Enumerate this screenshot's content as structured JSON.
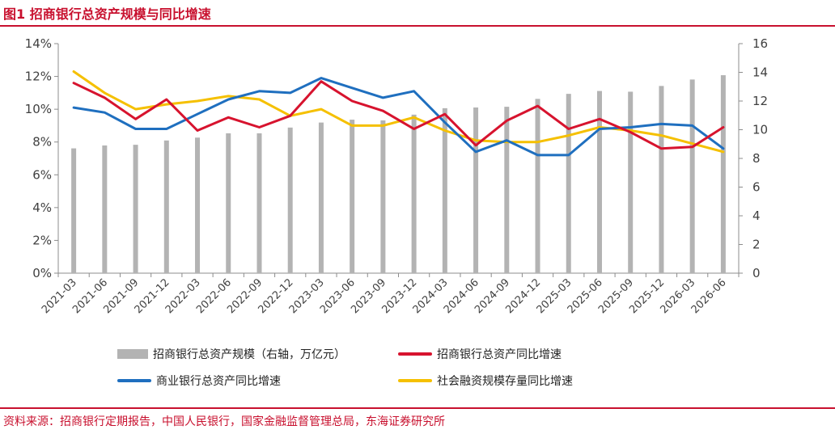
{
  "header": {
    "title": "图1  招商银行总资产规模与同比增速",
    "source": "资料来源：招商银行定期报告，中国人民银行，国家金融监督管理总局，东海证券研究所"
  },
  "colors": {
    "accent": "#c8102e",
    "bars": "#b3b3b3",
    "cmb_growth": "#d7132e",
    "bank_growth": "#1f6fbf",
    "social_growth": "#f5c000"
  },
  "chart_data": {
    "type": "bar+line",
    "categories": [
      "2021-03",
      "2021-06",
      "2021-09",
      "2021-12",
      "2022-03",
      "2022-06",
      "2022-09",
      "2022-12",
      "2023-03",
      "2023-06",
      "2023-09",
      "2023-12",
      "2024-03",
      "2024-06",
      "2024-09",
      "2024-12",
      "2025-03",
      "2025-06",
      "2025-09",
      "2025-12",
      "2026-03",
      "2026-06"
    ],
    "y_left": {
      "ylim": [
        0,
        14
      ],
      "ticks": [
        "0%",
        "2%",
        "4%",
        "6%",
        "8%",
        "10%",
        "12%",
        "14%"
      ]
    },
    "y_right": {
      "ylim": [
        0,
        16
      ],
      "ticks": [
        "0",
        "2",
        "4",
        "6",
        "8",
        "10",
        "12",
        "14",
        "16"
      ]
    },
    "grid": false,
    "legend_position": "bottom",
    "bar_series": {
      "name": "招商银行总资产规模（右轴，万亿元）",
      "axis": "right",
      "values": [
        8.7,
        8.9,
        8.95,
        9.25,
        9.45,
        9.75,
        9.75,
        10.15,
        10.5,
        10.7,
        10.65,
        11.05,
        11.5,
        11.55,
        11.6,
        12.15,
        12.5,
        12.7,
        12.65,
        13.05,
        13.5,
        13.8
      ]
    },
    "series": [
      {
        "name": "招商银行总资产同比增速",
        "axis": "left",
        "values": [
          11.6,
          10.7,
          9.4,
          10.6,
          8.7,
          9.5,
          8.9,
          9.6,
          11.7,
          10.5,
          9.9,
          8.8,
          9.7,
          7.8,
          9.3,
          10.2,
          8.8,
          9.4,
          8.6,
          7.6,
          7.7,
          8.9
        ]
      },
      {
        "name": "商业银行总资产同比增速",
        "axis": "left",
        "values": [
          10.1,
          9.8,
          8.8,
          8.8,
          9.7,
          10.6,
          11.1,
          11.0,
          11.9,
          11.3,
          10.7,
          11.1,
          9.2,
          7.4,
          8.1,
          7.2,
          7.2,
          8.8,
          8.9,
          9.1,
          9.0,
          7.6
        ]
      },
      {
        "name": "社会融资规模存量同比增速",
        "axis": "left",
        "values": [
          12.3,
          11.0,
          10.0,
          10.3,
          10.5,
          10.8,
          10.6,
          9.6,
          10.0,
          9.0,
          9.0,
          9.5,
          8.7,
          8.1,
          8.0,
          8.0,
          8.4,
          8.9,
          8.7,
          8.4,
          7.9,
          7.4
        ]
      }
    ]
  },
  "legend": {
    "bar_label": "招商银行总资产规模（右轴，万亿元）",
    "cmb_label": "招商银行总资产同比增速",
    "bank_label": "商业银行总资产同比增速",
    "social_label": "社会融资规模存量同比增速"
  }
}
